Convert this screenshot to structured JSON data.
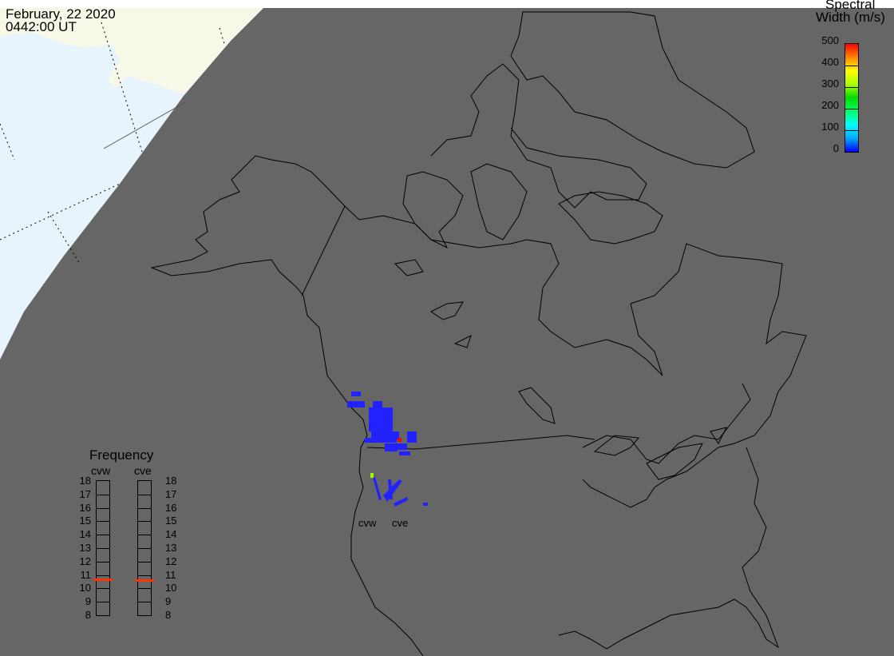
{
  "header": {
    "date": "February, 22 2020",
    "time": "0442:00 UT"
  },
  "colorbar": {
    "title_line1": "Spectral",
    "title_line2": "Width (m/s)",
    "ticks": [
      "500",
      "400",
      "300",
      "200",
      "100",
      "0"
    ],
    "range": [
      0,
      500
    ],
    "colors": [
      "#0000ff",
      "#00aaff",
      "#00ffff",
      "#00ff66",
      "#00dd00",
      "#aaff00",
      "#ffff00",
      "#ff8800",
      "#ff0000"
    ]
  },
  "frequency": {
    "title": "Frequency",
    "ticks": [
      "18",
      "17",
      "16",
      "15",
      "14",
      "13",
      "12",
      "11",
      "10",
      "9",
      "8"
    ],
    "range": [
      8,
      18
    ],
    "radars": [
      {
        "name": "cvw",
        "value_mhz": 10.7
      },
      {
        "name": "cve",
        "value_mhz": 10.6
      }
    ],
    "marker_color": "#ff3300"
  },
  "map": {
    "radar_labels": [
      "cvw",
      "cve"
    ],
    "background_color": "#666666",
    "dayside_ocean_color": "#e8f4fc",
    "dayside_land_color": "#f8f8e8"
  }
}
